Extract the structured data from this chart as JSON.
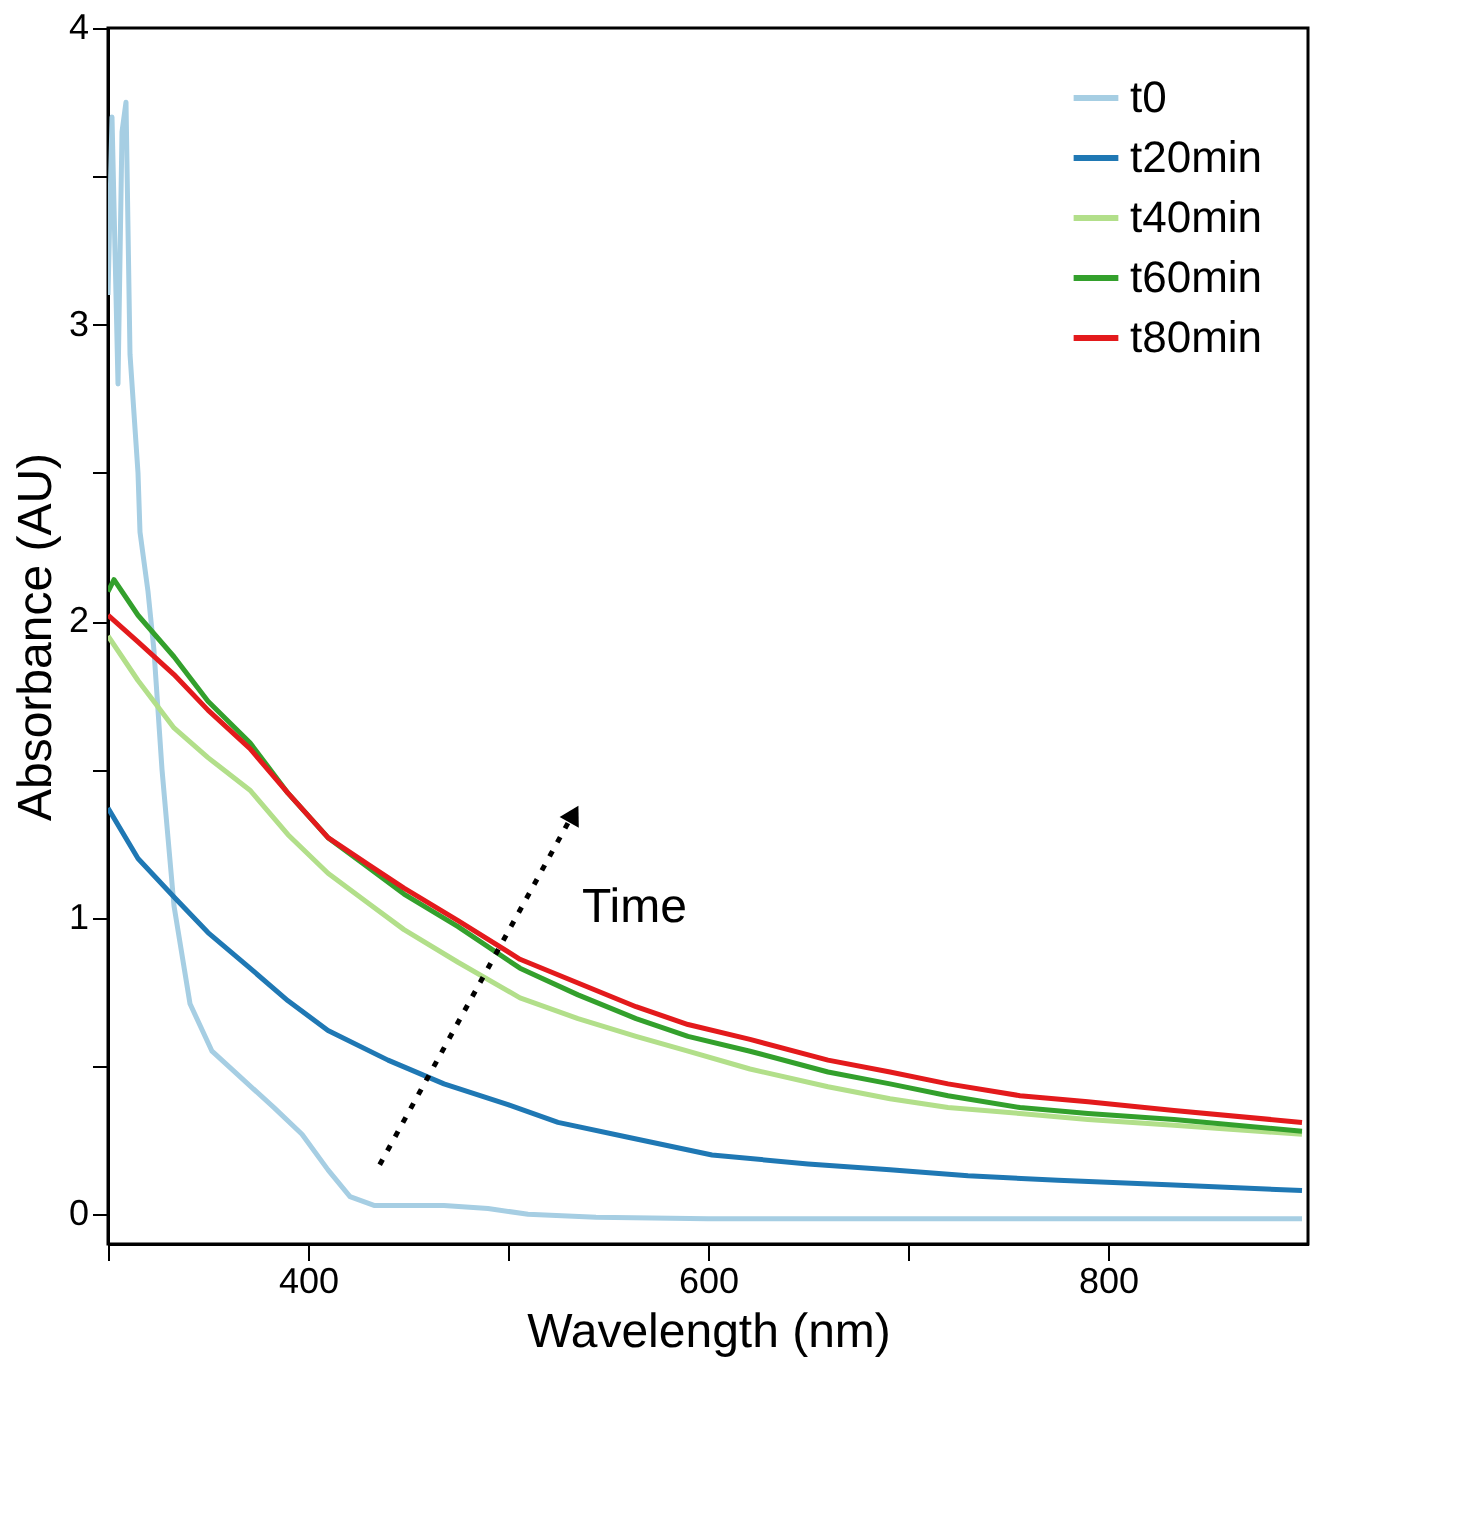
{
  "chart_data": {
    "type": "line",
    "xlabel": "Wavelength (nm)",
    "ylabel": "Absorbance (AU)",
    "xlim": [
      300,
      900
    ],
    "ylim": [
      -0.1,
      4
    ],
    "xticks": [
      {
        "value": 300,
        "label": null
      },
      400,
      {
        "value": 500,
        "label": null
      },
      600,
      {
        "value": 700,
        "label": null
      },
      800
    ],
    "yticks": [
      0,
      {
        "value": 0.5,
        "label": null
      },
      1,
      {
        "value": 1.5,
        "label": null
      },
      2,
      {
        "value": 2.5,
        "label": null
      },
      3,
      {
        "value": 3.5,
        "label": null
      },
      4
    ],
    "grid": false,
    "legend": "top right",
    "marker": "none",
    "line_style": "solid",
    "annotations": [
      "Time"
    ],
    "series": [
      {
        "name": "t0",
        "color": "#a6cee3",
        "x": [
          300,
          302,
          305,
          307,
          309,
          311,
          313,
          315,
          316,
          320,
          323,
          327,
          333,
          341,
          352,
          365,
          383,
          397,
          410,
          421,
          433,
          450,
          468,
          490,
          510,
          544,
          600,
          700,
          800,
          897
        ],
        "values": [
          3.1,
          3.7,
          2.8,
          3.65,
          3.75,
          2.9,
          2.7,
          2.5,
          2.3,
          2.1,
          1.9,
          1.5,
          1.04,
          0.71,
          0.55,
          0.47,
          0.36,
          0.27,
          0.15,
          0.06,
          0.03,
          0.03,
          0.03,
          0.02,
          0.0,
          -0.01,
          -0.015,
          -0.015,
          -0.015,
          -0.015
        ]
      },
      {
        "name": "t20min",
        "color": "#1f78b4",
        "x": [
          300,
          315,
          333,
          350,
          371,
          390,
          410,
          440,
          468,
          500,
          525,
          560,
          602,
          650,
          691,
          730,
          775,
          830,
          897
        ],
        "values": [
          1.37,
          1.2,
          1.07,
          0.95,
          0.83,
          0.72,
          0.62,
          0.52,
          0.44,
          0.37,
          0.31,
          0.26,
          0.2,
          0.17,
          0.15,
          0.13,
          0.115,
          0.1,
          0.08
        ]
      },
      {
        "name": "t40min",
        "color": "#b2df8a",
        "x": [
          300,
          315,
          333,
          350,
          371,
          390,
          410,
          430,
          448,
          475,
          506,
          535,
          564,
          590,
          621,
          660,
          691,
          720,
          756,
          790,
          833,
          897
        ],
        "values": [
          1.95,
          1.8,
          1.64,
          1.54,
          1.43,
          1.28,
          1.15,
          1.05,
          0.96,
          0.85,
          0.73,
          0.66,
          0.6,
          0.55,
          0.49,
          0.43,
          0.39,
          0.36,
          0.34,
          0.32,
          0.3,
          0.27
        ]
      },
      {
        "name": "t60min",
        "color": "#33a02c",
        "x": [
          300,
          303,
          315,
          333,
          350,
          371,
          390,
          410,
          430,
          448,
          475,
          506,
          535,
          564,
          590,
          621,
          660,
          691,
          720,
          756,
          790,
          833,
          897
        ],
        "values": [
          2.1,
          2.14,
          2.02,
          1.88,
          1.73,
          1.59,
          1.42,
          1.27,
          1.17,
          1.08,
          0.97,
          0.83,
          0.74,
          0.66,
          0.6,
          0.55,
          0.48,
          0.44,
          0.4,
          0.36,
          0.34,
          0.32,
          0.28
        ]
      },
      {
        "name": "t80min",
        "color": "#e31a1c",
        "x": [
          300,
          315,
          333,
          350,
          371,
          390,
          410,
          430,
          448,
          475,
          506,
          535,
          564,
          590,
          621,
          660,
          691,
          720,
          756,
          790,
          833,
          897
        ],
        "values": [
          2.02,
          1.93,
          1.82,
          1.7,
          1.57,
          1.42,
          1.27,
          1.18,
          1.1,
          0.99,
          0.86,
          0.78,
          0.7,
          0.64,
          0.59,
          0.52,
          0.48,
          0.44,
          0.4,
          0.38,
          0.35,
          0.31
        ]
      }
    ]
  }
}
